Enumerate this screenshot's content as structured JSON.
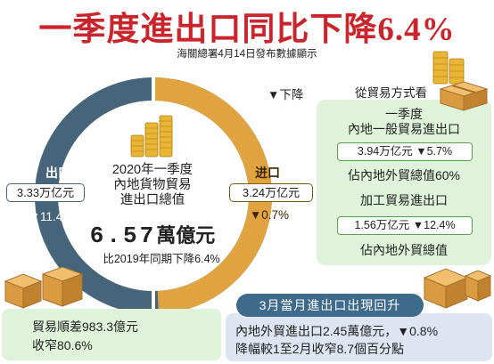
{
  "headline": "一季度進出口同比下降6.4%",
  "source": "海關總署4月14日發布數據顯示",
  "total": {
    "line1": "2020年一季度",
    "line2": "內地貨物貿易",
    "line3": "進出口總值",
    "value": "6.57",
    "unit": "萬億元",
    "comparison": "比2019年同期下降6.4%"
  },
  "exports": {
    "label": "出口",
    "value": "3.33万亿元",
    "change": "▼11.4%"
  },
  "imports": {
    "label": "进口",
    "value": "3.24万亿元",
    "change": "▼0.7%"
  },
  "legend": {
    "decline": "▼下降",
    "by_method": "從貿易方式看"
  },
  "general_trade": {
    "line1": "一季度",
    "line2": "內地一般貿易進出口",
    "value": "3.94万亿元 ▼5.7%",
    "note": "佔內地外貿總值60%"
  },
  "processing_trade": {
    "title": "加工貿易進出口",
    "value": "1.56万亿元 ▼12.4%",
    "note": "佔內地外貿總值"
  },
  "trade_balance": {
    "line1": "貿易順差983.3億元",
    "line2": "收窄80.6%"
  },
  "march": {
    "title": "3月當月進出口出現回升",
    "line1": "內地外貿進出口2.45萬億元，▼0.8%",
    "line2": "降幅較1至2月收窄8.7個百分點"
  },
  "colors": {
    "headline": "#c9252c",
    "exports_ring": "#46657a",
    "imports_ring": "#e0a340",
    "panel_green": "#dff2da",
    "panel_blue": "#dde6f0",
    "pill_blue": "#3e6b8c"
  },
  "share": {
    "exports": 0.507,
    "imports": 0.493
  }
}
